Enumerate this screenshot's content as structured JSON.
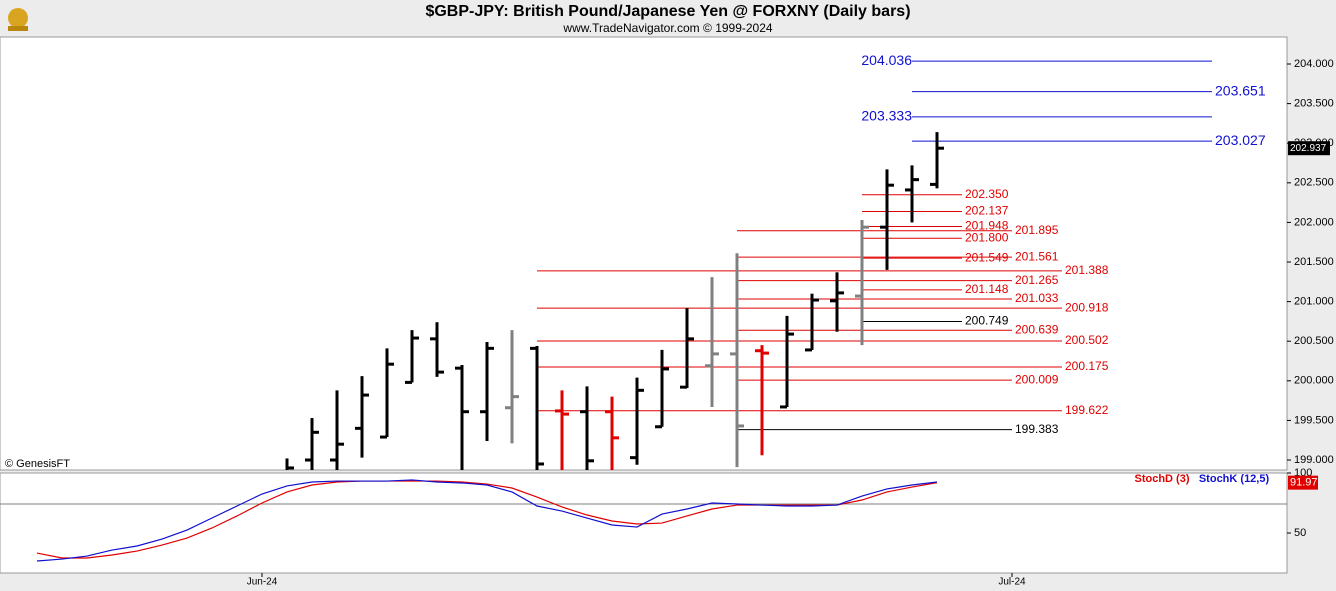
{
  "chart_data": [
    {
      "type": "ohlc",
      "title": "$GBP-JPY:  British Pound/Japanese Yen @ FORXNY  (Daily bars)",
      "subtitle": "www.TradeNavigator.com © 1999-2024",
      "annotation": "© GenesisFT",
      "open": [
        null,
        null,
        null,
        null,
        null,
        null,
        null,
        null,
        null,
        null,
        198.7,
        199.0,
        199.0,
        199.4,
        199.29,
        199.98,
        200.53,
        200.16,
        199.61,
        199.66,
        200.41,
        199.62,
        199.61,
        199.61,
        199.03,
        199.42,
        199.92,
        200.19,
        200.34,
        200.38,
        199.67,
        200.39,
        201.01,
        201.07,
        201.94,
        202.41,
        202.48,
        null,
        null,
        null
      ],
      "high": [
        null,
        null,
        null,
        null,
        null,
        null,
        null,
        null,
        null,
        null,
        199.02,
        199.53,
        199.88,
        200.06,
        200.41,
        200.64,
        200.74,
        200.2,
        200.49,
        200.64,
        200.44,
        199.88,
        199.93,
        199.8,
        200.04,
        200.39,
        200.92,
        201.31,
        201.61,
        200.45,
        200.82,
        201.1,
        201.37,
        202.03,
        202.67,
        202.72,
        203.14,
        null,
        null,
        null
      ],
      "low": [
        null,
        null,
        null,
        null,
        null,
        null,
        null,
        null,
        null,
        null,
        198.5,
        198.8,
        198.8,
        199.03,
        199.29,
        199.98,
        200.05,
        198.85,
        199.24,
        199.21,
        198.85,
        198.85,
        198.85,
        198.85,
        198.94,
        199.42,
        199.91,
        199.67,
        198.91,
        199.06,
        199.67,
        200.39,
        200.62,
        200.45,
        201.4,
        202.0,
        202.43,
        null,
        null,
        null
      ],
      "close": [
        null,
        null,
        null,
        null,
        null,
        null,
        null,
        null,
        null,
        null,
        198.9,
        199.35,
        199.2,
        199.82,
        200.21,
        200.54,
        200.11,
        199.61,
        200.41,
        199.8,
        198.95,
        199.58,
        198.99,
        199.28,
        199.88,
        200.15,
        200.53,
        200.34,
        199.43,
        200.35,
        200.59,
        201.02,
        201.11,
        201.94,
        202.47,
        202.54,
        202.937,
        null,
        null,
        null
      ],
      "colors": [
        null,
        null,
        null,
        null,
        null,
        null,
        null,
        null,
        null,
        null,
        "#000000",
        "#000000",
        "#000000",
        "#000000",
        "#000000",
        "#000000",
        "#000000",
        "#000000",
        "#000000",
        "#808080",
        "#000000",
        "#e00000",
        "#000000",
        "#e00000",
        "#000000",
        "#000000",
        "#000000",
        "#808080",
        "#808080",
        "#e00000",
        "#000000",
        "#000000",
        "#000000",
        "#808080",
        "#000000",
        "#000000",
        "#000000",
        null,
        null,
        null
      ],
      "levels": [
        {
          "value": 204.036,
          "label": "204.036",
          "color": "#1010d0"
        },
        {
          "value": 203.651,
          "label": "203.651",
          "color": "#1010d0"
        },
        {
          "value": 203.333,
          "label": "203.333",
          "color": "#1010d0"
        },
        {
          "value": 203.027,
          "label": "203.027",
          "color": "#1010d0"
        },
        {
          "value": 202.35,
          "label": "202.350",
          "color": "#e00000"
        },
        {
          "value": 202.137,
          "label": "202.137",
          "color": "#e00000"
        },
        {
          "value": 201.948,
          "label": "201.948",
          "color": "#e00000"
        },
        {
          "value": 201.895,
          "label": "201.895",
          "color": "#e00000"
        },
        {
          "value": 201.8,
          "label": "201.800",
          "color": "#e00000"
        },
        {
          "value": 201.561,
          "label": "201.561",
          "color": "#e00000"
        },
        {
          "value": 201.549,
          "label": "201.549",
          "color": "#e00000"
        },
        {
          "value": 201.388,
          "label": "201.388",
          "color": "#e00000"
        },
        {
          "value": 201.265,
          "label": "201.265",
          "color": "#e00000"
        },
        {
          "value": 201.148,
          "label": "201.148",
          "color": "#e00000"
        },
        {
          "value": 201.033,
          "label": "201.033",
          "color": "#e00000"
        },
        {
          "value": 200.918,
          "label": "200.918",
          "color": "#e00000"
        },
        {
          "value": 200.749,
          "label": "200.749",
          "color": "#000000"
        },
        {
          "value": 200.639,
          "label": "200.639",
          "color": "#e00000"
        },
        {
          "value": 200.502,
          "label": "200.502",
          "color": "#e00000"
        },
        {
          "value": 200.175,
          "label": "200.175",
          "color": "#e00000"
        },
        {
          "value": 200.009,
          "label": "200.009",
          "color": "#e00000"
        },
        {
          "value": 199.622,
          "label": "199.622",
          "color": "#e00000"
        },
        {
          "value": 199.383,
          "label": "199.383",
          "color": "#000000"
        }
      ],
      "ylim": [
        198.874,
        204.341
      ],
      "yticks": [
        {
          "value": 199,
          "label": "199.000"
        },
        {
          "value": 199.5,
          "label": "199.500"
        },
        {
          "value": 200,
          "label": "200.000"
        },
        {
          "value": 200.5,
          "label": "200.500"
        },
        {
          "value": 201,
          "label": "201.000"
        },
        {
          "value": 201.5,
          "label": "201.500"
        },
        {
          "value": 202,
          "label": "202.000"
        },
        {
          "value": 202.5,
          "label": "202.500"
        },
        {
          "value": 203,
          "label": "203.000"
        },
        {
          "value": 203.5,
          "label": "203.500"
        },
        {
          "value": 204,
          "label": "204.000"
        }
      ]
    },
    {
      "type": "line",
      "categories": [
        null,
        null,
        null,
        null,
        null,
        null,
        null,
        null,
        null,
        "Jun-24",
        null,
        null,
        null,
        null,
        null,
        null,
        null,
        null,
        null,
        null,
        null,
        null,
        null,
        null,
        null,
        null,
        null,
        null,
        null,
        null,
        null,
        null,
        null,
        null,
        null,
        null,
        null,
        null,
        null,
        "Jul-24"
      ],
      "series": [
        {
          "name": "StochD (3)",
          "color": "#e00000",
          "values": [
            33.3,
            29.2,
            29.2,
            31.7,
            35,
            40,
            45.8,
            54.2,
            64.2,
            75,
            84.2,
            90,
            92.5,
            93.3,
            93.3,
            93.3,
            93.3,
            92.5,
            90.8,
            87.5,
            80,
            71.7,
            65,
            60,
            57.5,
            58.3,
            64.2,
            70,
            73.3,
            73.3,
            73.3,
            73.3,
            73.3,
            77.5,
            84.2,
            88.3,
            91.97,
            null,
            null,
            null
          ]
        },
        {
          "name": "StochK (12,5)",
          "color": "#1010d0",
          "values": [
            26.7,
            28.3,
            30.8,
            35.8,
            39.2,
            45,
            52.5,
            62.5,
            72.5,
            82.5,
            89.2,
            92.5,
            93.3,
            93.3,
            93.3,
            94.2,
            92.5,
            91.7,
            90,
            84.2,
            72.5,
            68.3,
            62.5,
            56.7,
            55,
            65.8,
            70,
            75,
            74.2,
            73.3,
            72.5,
            72.5,
            73.3,
            80.8,
            86.7,
            90,
            92.5,
            null,
            null,
            null
          ]
        }
      ],
      "ylim": [
        16.7,
        100
      ],
      "yticks": [
        50,
        100
      ]
    }
  ]
}
